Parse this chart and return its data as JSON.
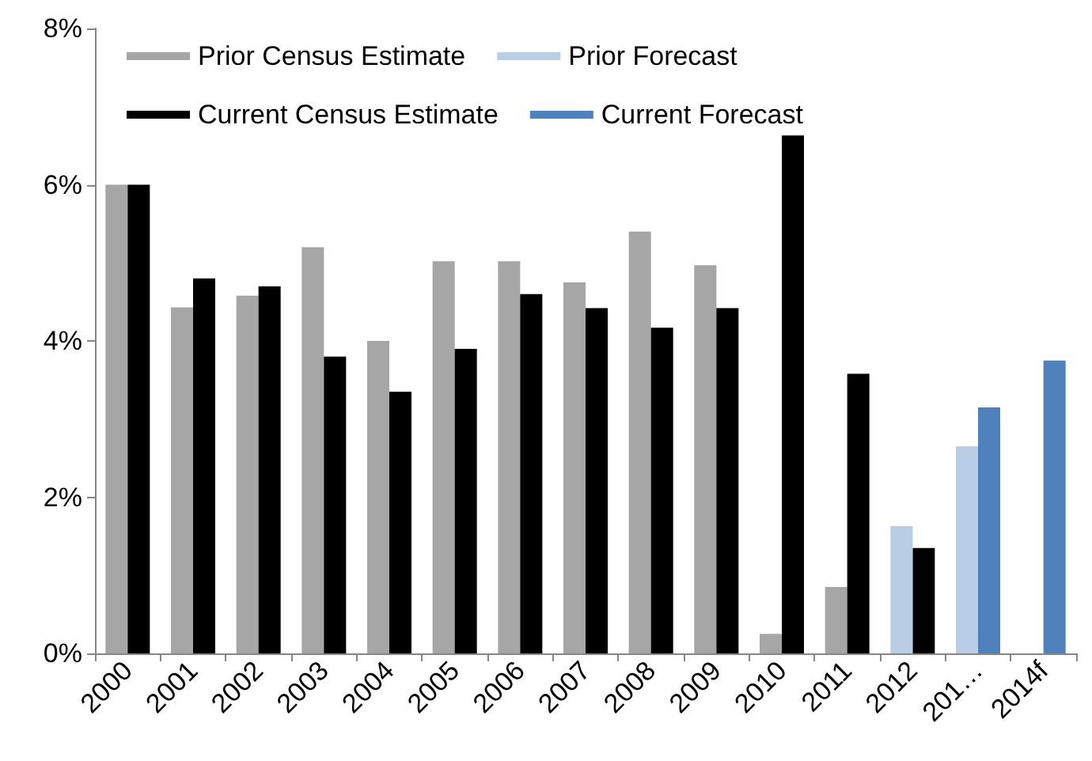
{
  "chart_data": {
    "type": "bar",
    "categories": [
      "2000",
      "2001",
      "2002",
      "2003",
      "2004",
      "2005",
      "2006",
      "2007",
      "2008",
      "2009",
      "2010",
      "2011",
      "2012",
      "201…",
      "2014f"
    ],
    "series": [
      {
        "name": "Prior Census Estimate",
        "color": "#a6a6a6",
        "values": [
          6.0,
          4.43,
          4.58,
          5.2,
          4.0,
          5.02,
          5.02,
          4.75,
          5.4,
          4.97,
          0.25,
          0.85,
          null,
          null,
          null
        ]
      },
      {
        "name": "Current Census Estimate",
        "color": "#000000",
        "values": [
          6.0,
          4.8,
          4.7,
          3.8,
          3.35,
          3.9,
          4.6,
          4.42,
          4.17,
          4.42,
          6.63,
          3.58,
          1.35,
          null,
          null
        ]
      },
      {
        "name": "Prior Forecast",
        "color": "#b9cde5",
        "values": [
          null,
          null,
          null,
          null,
          null,
          null,
          null,
          null,
          null,
          null,
          null,
          null,
          1.63,
          2.65,
          null
        ]
      },
      {
        "name": "Current Forecast",
        "color": "#4f81bd",
        "values": [
          null,
          null,
          null,
          null,
          null,
          null,
          null,
          null,
          null,
          null,
          null,
          null,
          null,
          3.15,
          3.75
        ]
      }
    ],
    "ylim": [
      0,
      8
    ],
    "yticks": [
      {
        "value": 0,
        "label": "0%"
      },
      {
        "value": 2,
        "label": "2%"
      },
      {
        "value": 4,
        "label": "4%"
      },
      {
        "value": 6,
        "label": "6%"
      },
      {
        "value": 8,
        "label": "8%"
      }
    ],
    "grid": false,
    "legend": "top left"
  }
}
